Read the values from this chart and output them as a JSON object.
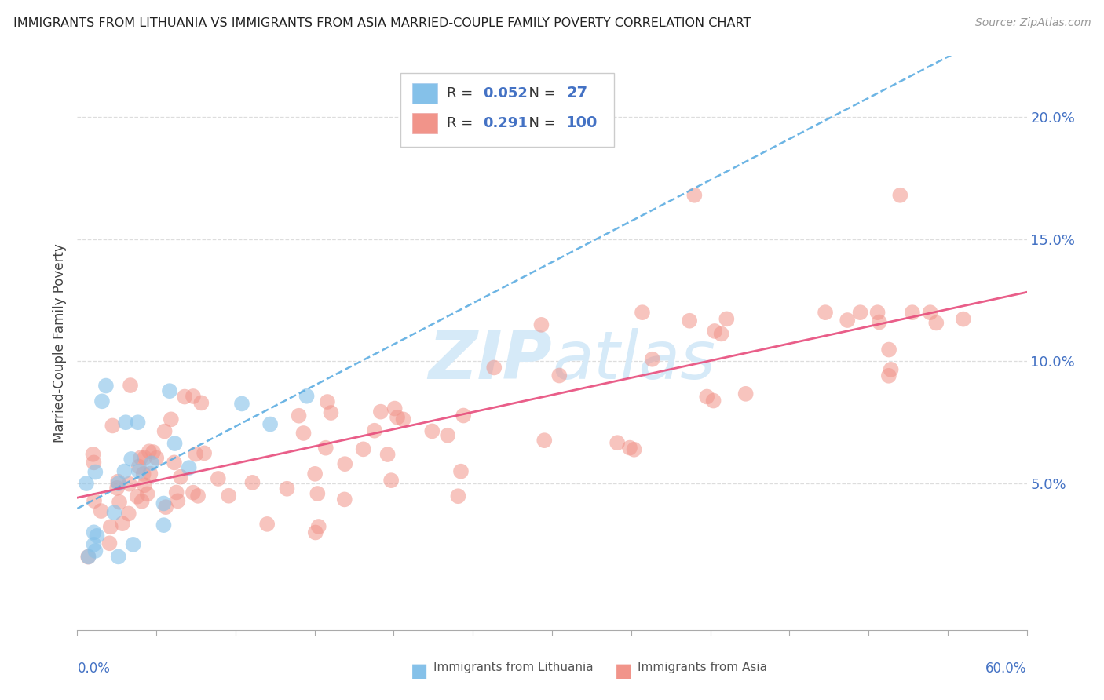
{
  "title": "IMMIGRANTS FROM LITHUANIA VS IMMIGRANTS FROM ASIA MARRIED-COUPLE FAMILY POVERTY CORRELATION CHART",
  "source": "Source: ZipAtlas.com",
  "ylabel": "Married-Couple Family Poverty",
  "ytick_values": [
    0.05,
    0.1,
    0.15,
    0.2
  ],
  "xlim": [
    0.0,
    0.6
  ],
  "ylim": [
    -0.01,
    0.225
  ],
  "legend_r_lithuania": "0.052",
  "legend_n_lithuania": "27",
  "legend_r_asia": "0.291",
  "legend_n_asia": "100",
  "color_lithuania": "#85C1E9",
  "color_asia": "#F1948A",
  "trendline_color_lithuania": "#5DADE2",
  "trendline_color_asia": "#E74C7C",
  "watermark_color": "#D6EAF8",
  "axis_color": "#AAAAAA",
  "tick_label_color": "#4472C4",
  "title_color": "#222222",
  "source_color": "#999999",
  "grid_color": "#DDDDDD",
  "lith_seed": 42,
  "asia_seed": 7
}
